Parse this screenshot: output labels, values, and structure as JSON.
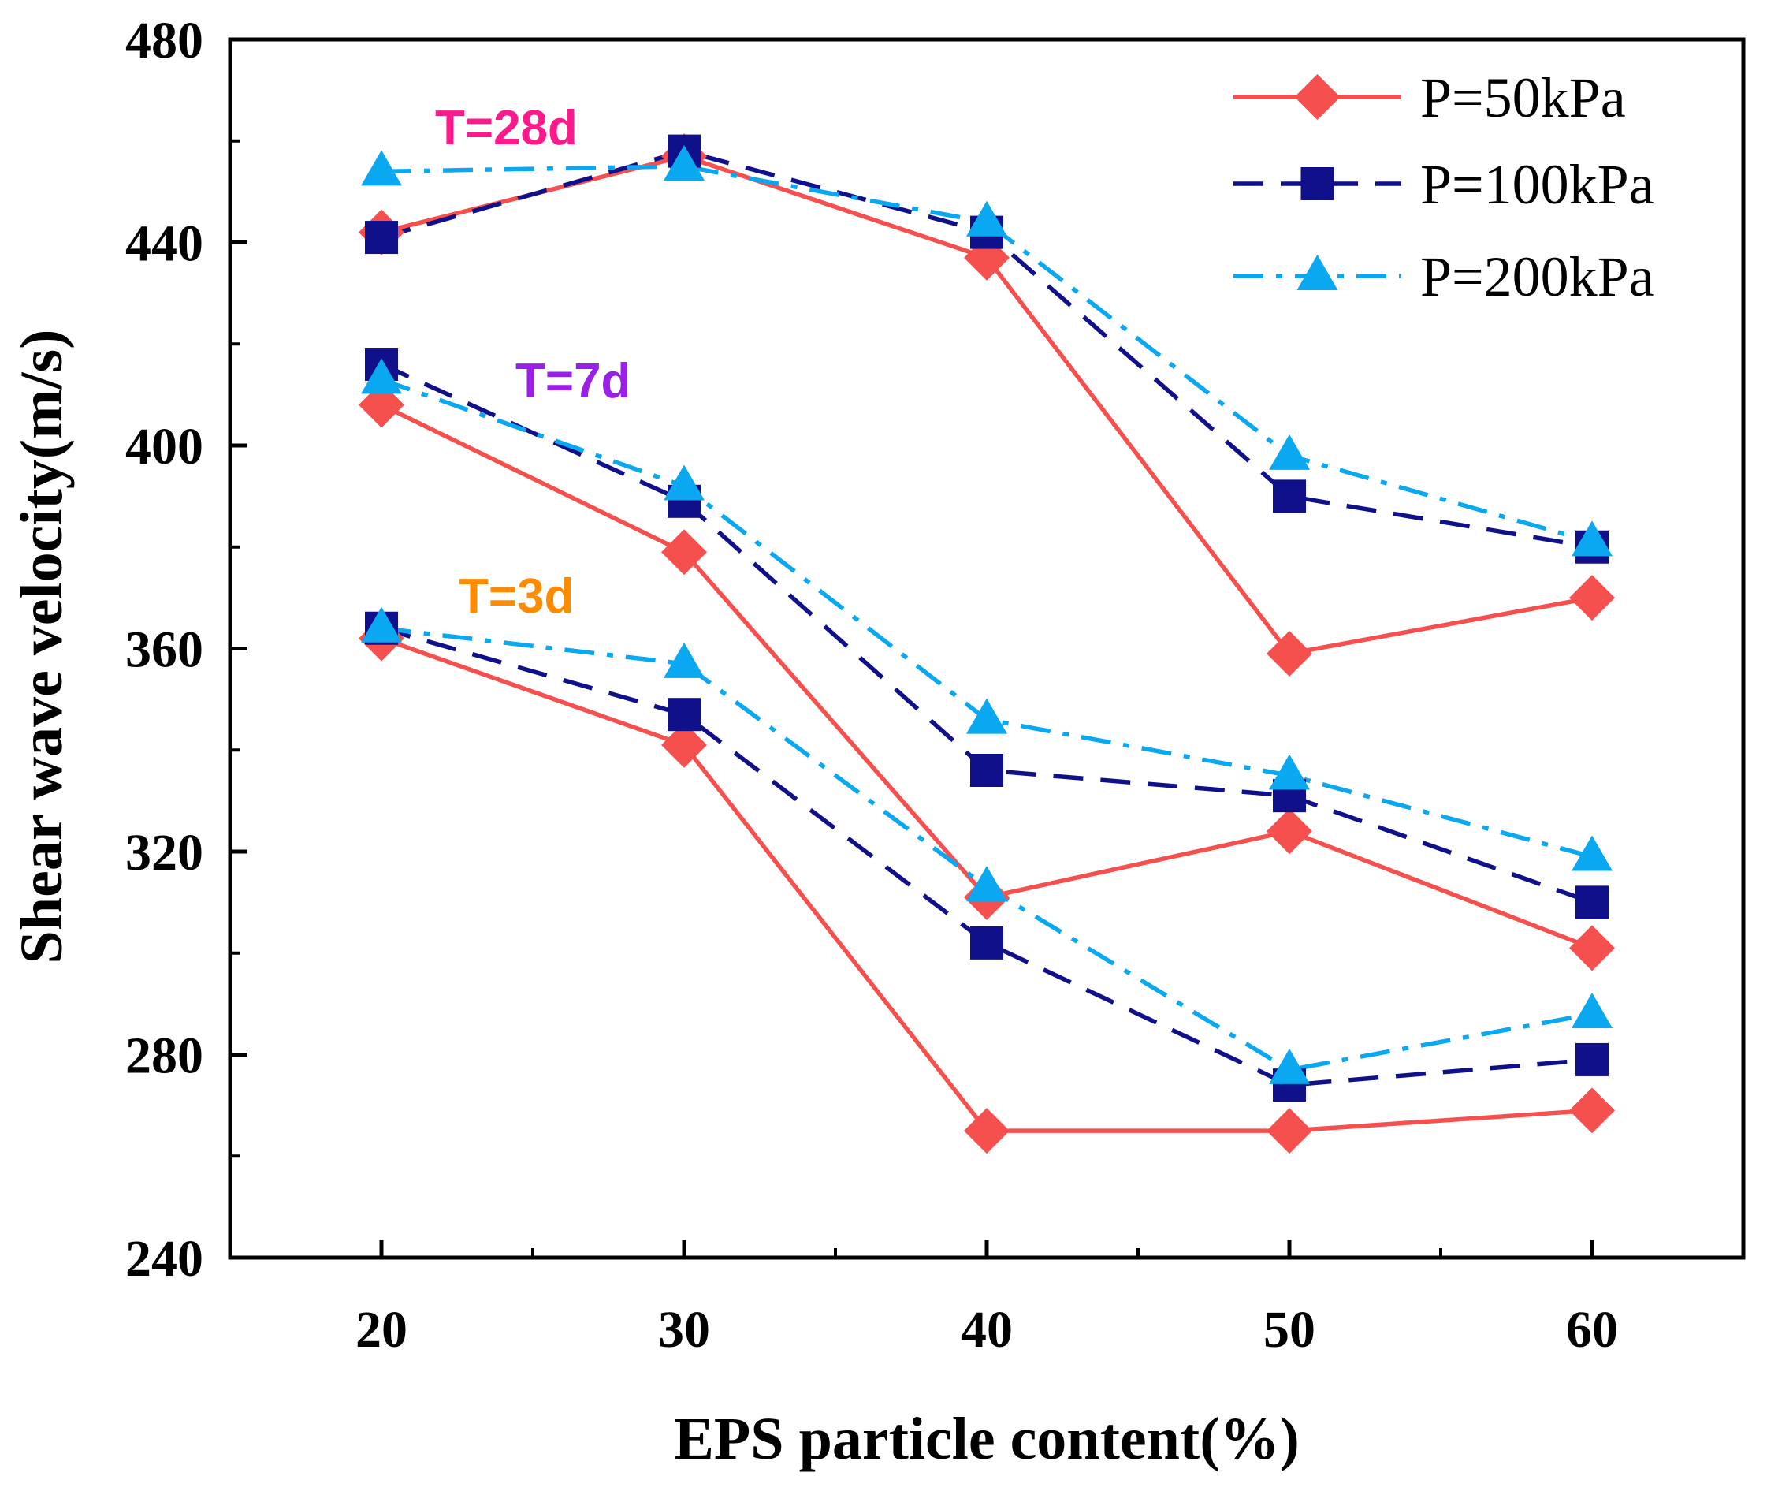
{
  "chart_data": {
    "type": "line",
    "xlabel": "EPS particle content(%)",
    "ylabel": "Shear wave velocity(m/s)",
    "x": [
      20,
      30,
      40,
      50,
      60
    ],
    "xlim": [
      15,
      65
    ],
    "ylim": [
      240,
      480
    ],
    "xticks": [
      20,
      30,
      40,
      50,
      60
    ],
    "yticks": [
      240,
      280,
      320,
      360,
      400,
      440,
      480
    ],
    "xtick_labels": [
      "20",
      "30",
      "40",
      "50",
      "60"
    ],
    "ytick_labels": [
      "240",
      "280",
      "320",
      "360",
      "400",
      "440",
      "480"
    ],
    "legend_position": "top-right",
    "legend": [
      {
        "label": "P=50kPa",
        "series": "p50"
      },
      {
        "label": "P=100kPa",
        "series": "p100"
      },
      {
        "label": "P=200kPa",
        "series": "p200"
      }
    ],
    "series_styles": {
      "p50": {
        "color": "#f5504e",
        "marker": "diamond",
        "dash": "solid"
      },
      "p100": {
        "color": "#10108a",
        "marker": "square",
        "dash": "dashed"
      },
      "p200": {
        "color": "#0aa8f0",
        "marker": "triangle",
        "dash": "dashdot"
      }
    },
    "groups": [
      {
        "label": "T=28d",
        "label_color": "#ff1a8c",
        "series": {
          "p50": [
            442,
            457,
            437,
            359,
            370
          ],
          "p100": [
            441,
            458,
            442,
            390,
            380
          ],
          "p200": [
            454,
            455,
            444,
            398,
            381
          ]
        }
      },
      {
        "label": "T=7d",
        "label_color": "#9b1fe8",
        "series": {
          "p50": [
            408,
            379,
            311,
            324,
            301
          ],
          "p100": [
            416,
            389,
            336,
            331,
            310
          ],
          "p200": [
            413,
            392,
            346,
            335,
            319
          ]
        }
      },
      {
        "label": "T=3d",
        "label_color": "#ff8c00",
        "series": {
          "p50": [
            362,
            341,
            265,
            265,
            269
          ],
          "p100": [
            364,
            347,
            302,
            274,
            279
          ],
          "p200": [
            364,
            357,
            313,
            277,
            288
          ]
        }
      }
    ]
  }
}
